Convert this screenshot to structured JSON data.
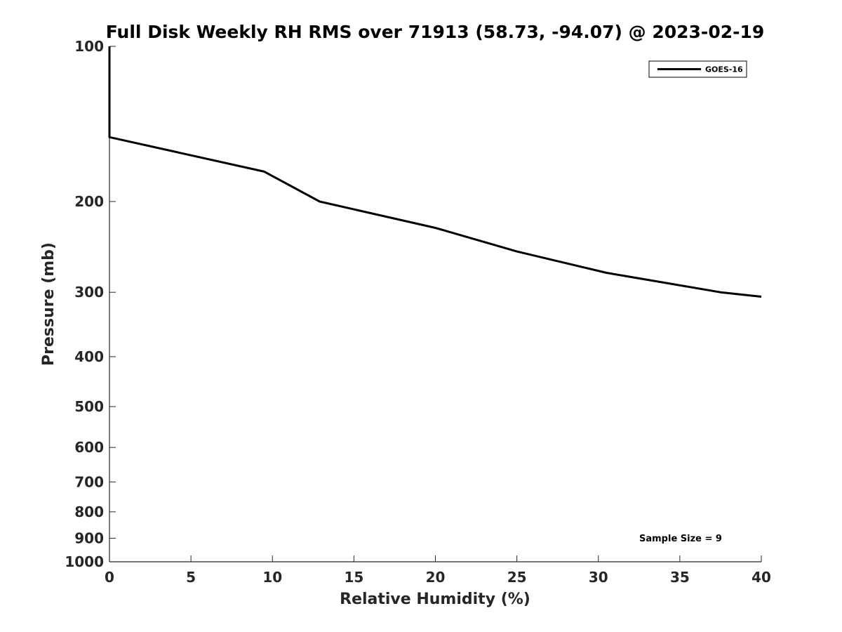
{
  "chart_data": {
    "type": "line",
    "title": "Full Disk Weekly RH RMS over 71913 (58.73, -94.07) @ 2023-02-19",
    "xlabel": "Relative Humidity (%)",
    "ylabel": "Pressure (mb)",
    "xlim": [
      0,
      40
    ],
    "ylim": [
      100,
      1000
    ],
    "yscale": "log",
    "y_reversed": true,
    "grid": false,
    "legend_position": "top-right",
    "x_ticks": [
      0,
      5,
      10,
      15,
      20,
      25,
      30,
      35,
      40
    ],
    "y_ticks": [
      100,
      200,
      300,
      400,
      500,
      600,
      700,
      800,
      900,
      1000
    ],
    "series": [
      {
        "name": "GOES-16",
        "color": "#000000",
        "points": [
          {
            "x": 0,
            "y": 100
          },
          {
            "x": 0,
            "y": 150
          },
          {
            "x": 9.5,
            "y": 175
          },
          {
            "x": 12.9,
            "y": 200
          },
          {
            "x": 20,
            "y": 225
          },
          {
            "x": 25,
            "y": 250
          },
          {
            "x": 30.5,
            "y": 275
          },
          {
            "x": 37.5,
            "y": 300
          },
          {
            "x": 40,
            "y": 306
          }
        ]
      }
    ],
    "annotation": "Sample Size = 9"
  }
}
